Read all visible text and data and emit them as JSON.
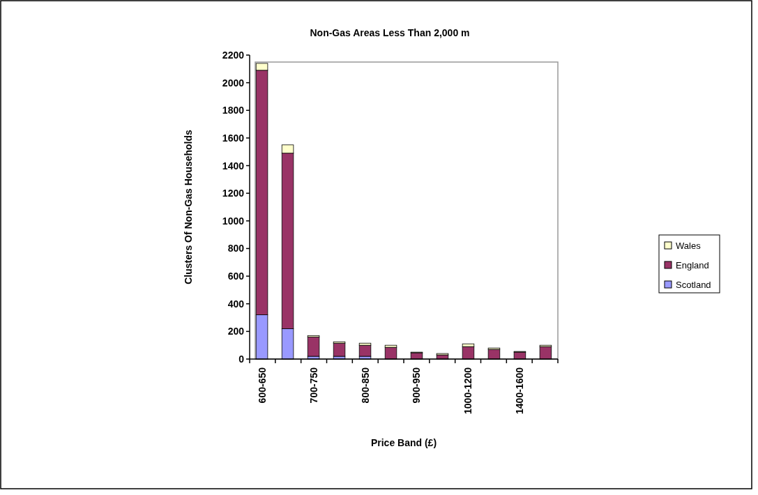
{
  "chart_data": {
    "type": "bar",
    "title": "Non-Gas Areas Less Than 2,000 m",
    "xlabel": "Price Band (£)",
    "ylabel": "Clusters Of Non-Gas Households",
    "stacked": true,
    "categories": [
      "600-650",
      null,
      "700-750",
      null,
      "800-850",
      null,
      "900-950",
      null,
      "1000-1200",
      null,
      "1400-1600",
      null
    ],
    "series": [
      {
        "name": "Scotland",
        "color": "#9999ff",
        "values": [
          320,
          220,
          20,
          20,
          20,
          0,
          0,
          0,
          0,
          0,
          0,
          0
        ]
      },
      {
        "name": "England",
        "color": "#993366",
        "values": [
          1770,
          1270,
          140,
          95,
          80,
          85,
          45,
          30,
          90,
          70,
          50,
          90
        ]
      },
      {
        "name": "Wales",
        "color": "#ffffcc",
        "values": [
          50,
          60,
          10,
          10,
          15,
          15,
          5,
          10,
          20,
          10,
          5,
          10
        ]
      }
    ],
    "ylim": [
      0,
      2200
    ],
    "yticks": [
      0,
      200,
      400,
      600,
      800,
      1000,
      1200,
      1400,
      1600,
      1800,
      2000,
      2200
    ],
    "legend": "right"
  }
}
